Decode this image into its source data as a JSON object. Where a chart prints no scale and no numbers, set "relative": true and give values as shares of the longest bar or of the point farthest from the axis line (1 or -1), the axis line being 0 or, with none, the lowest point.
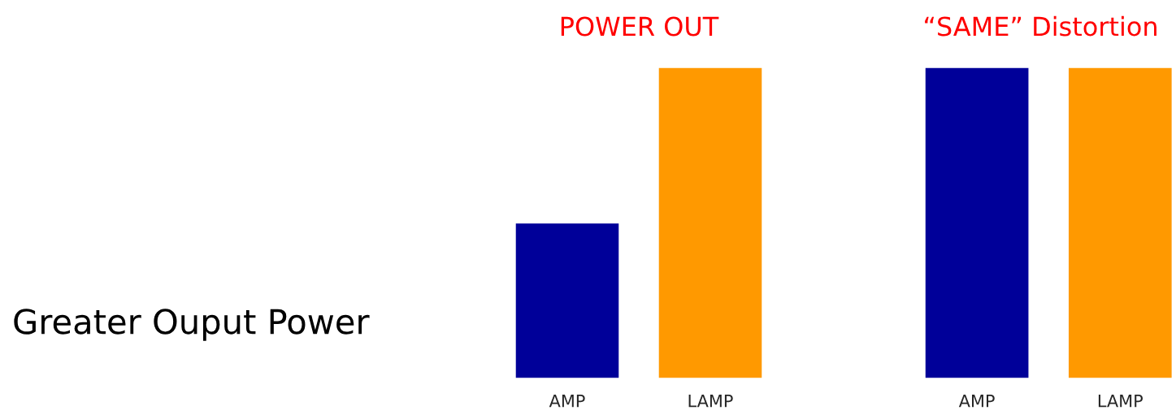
{
  "chart_data": [
    {
      "type": "other",
      "annotations": [
        "Greater Ouput Power"
      ]
    },
    {
      "type": "bar",
      "title": "POWER OUT",
      "relative": true,
      "categories": [
        "AMP",
        "LAMP"
      ],
      "values": [
        0.5,
        1
      ],
      "colors": [
        "#000099",
        "#ff9900"
      ],
      "grid": false
    },
    {
      "type": "bar",
      "title": "“SAME” Distortion",
      "relative": true,
      "categories": [
        "AMP",
        "LAMP"
      ],
      "values": [
        1,
        1
      ],
      "colors": [
        "#000099",
        "#ff9900"
      ],
      "grid": false
    }
  ]
}
